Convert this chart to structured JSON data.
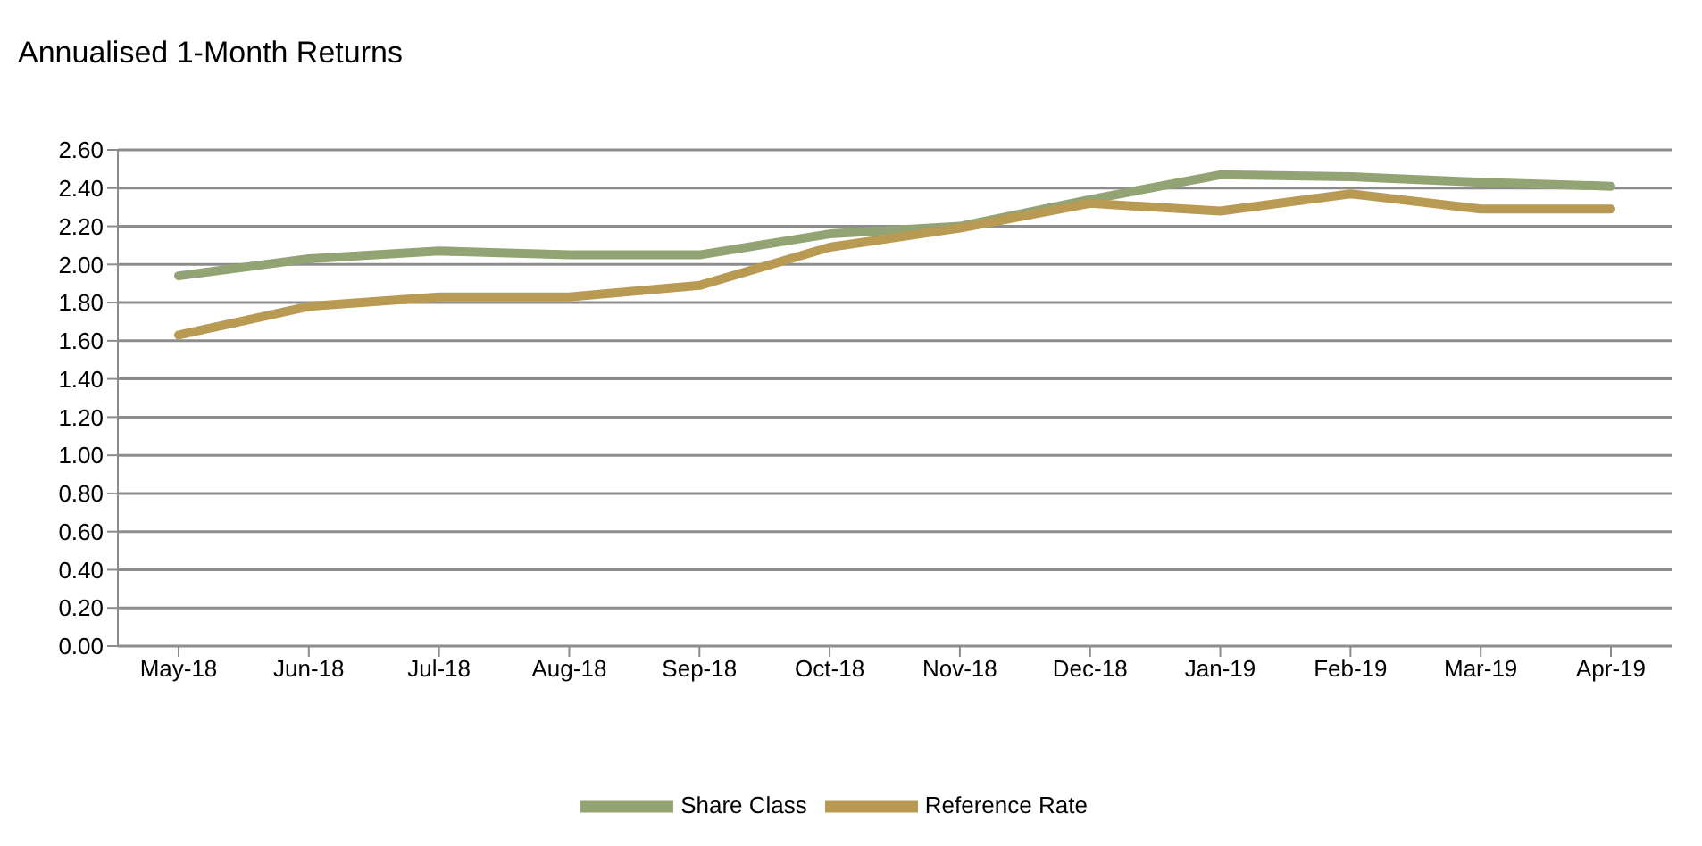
{
  "chart_data": {
    "type": "line",
    "title": "Annualised 1-Month Returns",
    "categories": [
      "May-18",
      "Jun-18",
      "Jul-18",
      "Aug-18",
      "Sep-18",
      "Oct-18",
      "Nov-18",
      "Dec-18",
      "Jan-19",
      "Feb-19",
      "Mar-19",
      "Apr-19"
    ],
    "series": [
      {
        "name": "Share Class",
        "color": "#93a474",
        "values": [
          1.94,
          2.03,
          2.07,
          2.05,
          2.05,
          2.16,
          2.2,
          2.34,
          2.47,
          2.46,
          2.43,
          2.41
        ]
      },
      {
        "name": "Reference Rate",
        "color": "#b99a52",
        "values": [
          1.63,
          1.78,
          1.83,
          1.83,
          1.89,
          2.09,
          2.19,
          2.32,
          2.28,
          2.37,
          2.29,
          2.29
        ]
      }
    ],
    "ylim": [
      0,
      2.6
    ],
    "yticks": [
      {
        "value": 0,
        "label": "0.00"
      },
      {
        "value": 0.2,
        "label": "0.20"
      },
      {
        "value": 0.4,
        "label": "0.40"
      },
      {
        "value": 0.6,
        "label": "0.60"
      },
      {
        "value": 0.8,
        "label": "0.80"
      },
      {
        "value": 1,
        "label": "1.00"
      },
      {
        "value": 1.2,
        "label": "1.20"
      },
      {
        "value": 1.4,
        "label": "1.40"
      },
      {
        "value": 1.6,
        "label": "1.60"
      },
      {
        "value": 1.8,
        "label": "1.80"
      },
      {
        "value": 2,
        "label": "2.00"
      },
      {
        "value": 2.2,
        "label": "2.20"
      },
      {
        "value": 2.4,
        "label": "2.40"
      },
      {
        "value": 2.6,
        "label": "2.60"
      }
    ],
    "grid": "y",
    "legend": "bottom",
    "marker": "none",
    "line_style": "solid"
  }
}
